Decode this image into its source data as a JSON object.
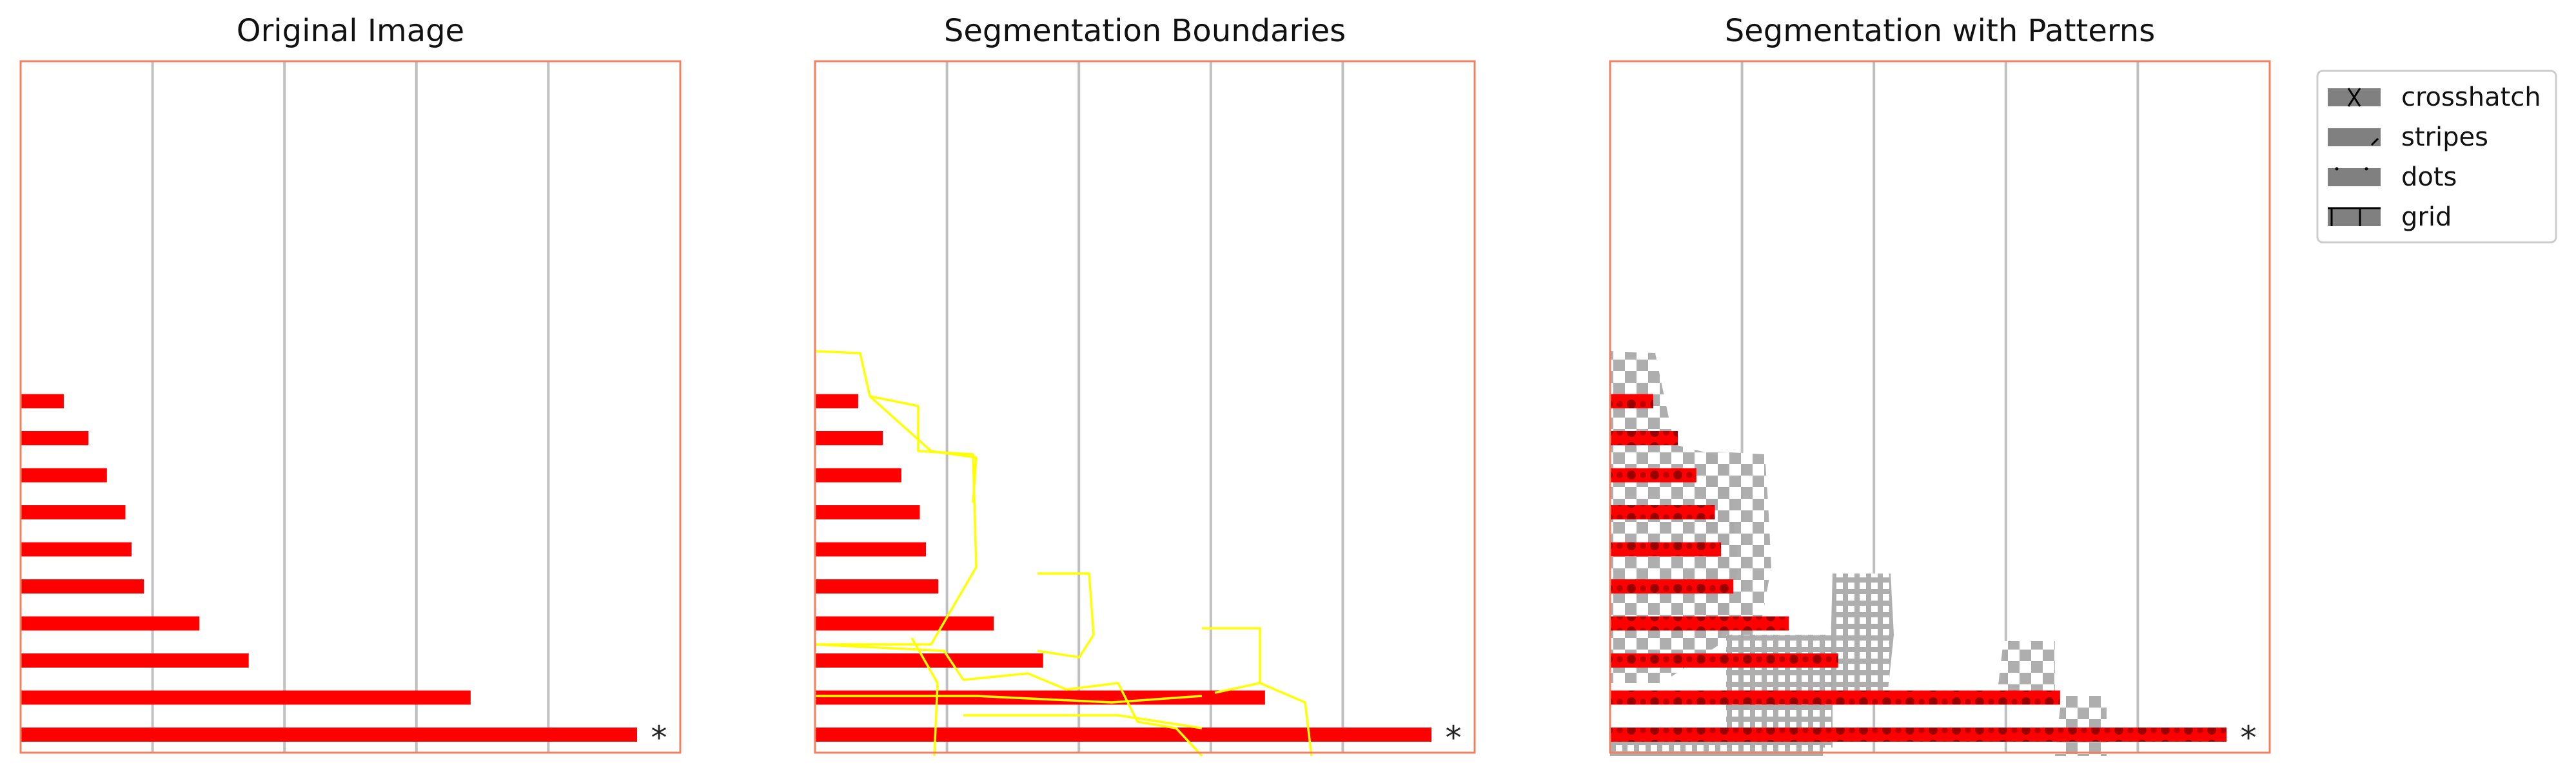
{
  "chart_data": [
    {
      "type": "bar",
      "orientation": "horizontal",
      "title": "Original Image",
      "xlabel": "",
      "ylabel": "",
      "values": [
        100,
        73,
        37,
        29,
        20,
        18,
        17,
        14,
        11,
        7
      ],
      "annotations": [
        {
          "index": 0,
          "text": "*"
        }
      ],
      "xlim": [
        0,
        100
      ],
      "grid": "vertical",
      "bar_color": "#ff0000"
    },
    {
      "type": "bar",
      "orientation": "horizontal",
      "title": "Segmentation Boundaries",
      "xlabel": "",
      "ylabel": "",
      "values": [
        100,
        73,
        37,
        29,
        20,
        18,
        17,
        14,
        11,
        7
      ],
      "annotations": [
        {
          "index": 0,
          "text": "*"
        }
      ],
      "xlim": [
        0,
        100
      ],
      "grid": "vertical",
      "bar_color": "#ff0000",
      "boundary_color": "#ffff00"
    },
    {
      "type": "bar",
      "orientation": "horizontal",
      "title": "Segmentation with Patterns",
      "xlabel": "",
      "ylabel": "",
      "values": [
        100,
        73,
        37,
        29,
        20,
        18,
        17,
        14,
        11,
        7
      ],
      "annotations": [
        {
          "index": 0,
          "text": "*"
        }
      ],
      "xlim": [
        0,
        100
      ],
      "grid": "vertical",
      "bar_color": "#ff0000",
      "pattern_color": "#a9a9a9",
      "legend": {
        "placement": "outside-right-top",
        "entries": [
          "crosshatch",
          "stripes",
          "dots",
          "grid"
        ]
      }
    }
  ]
}
